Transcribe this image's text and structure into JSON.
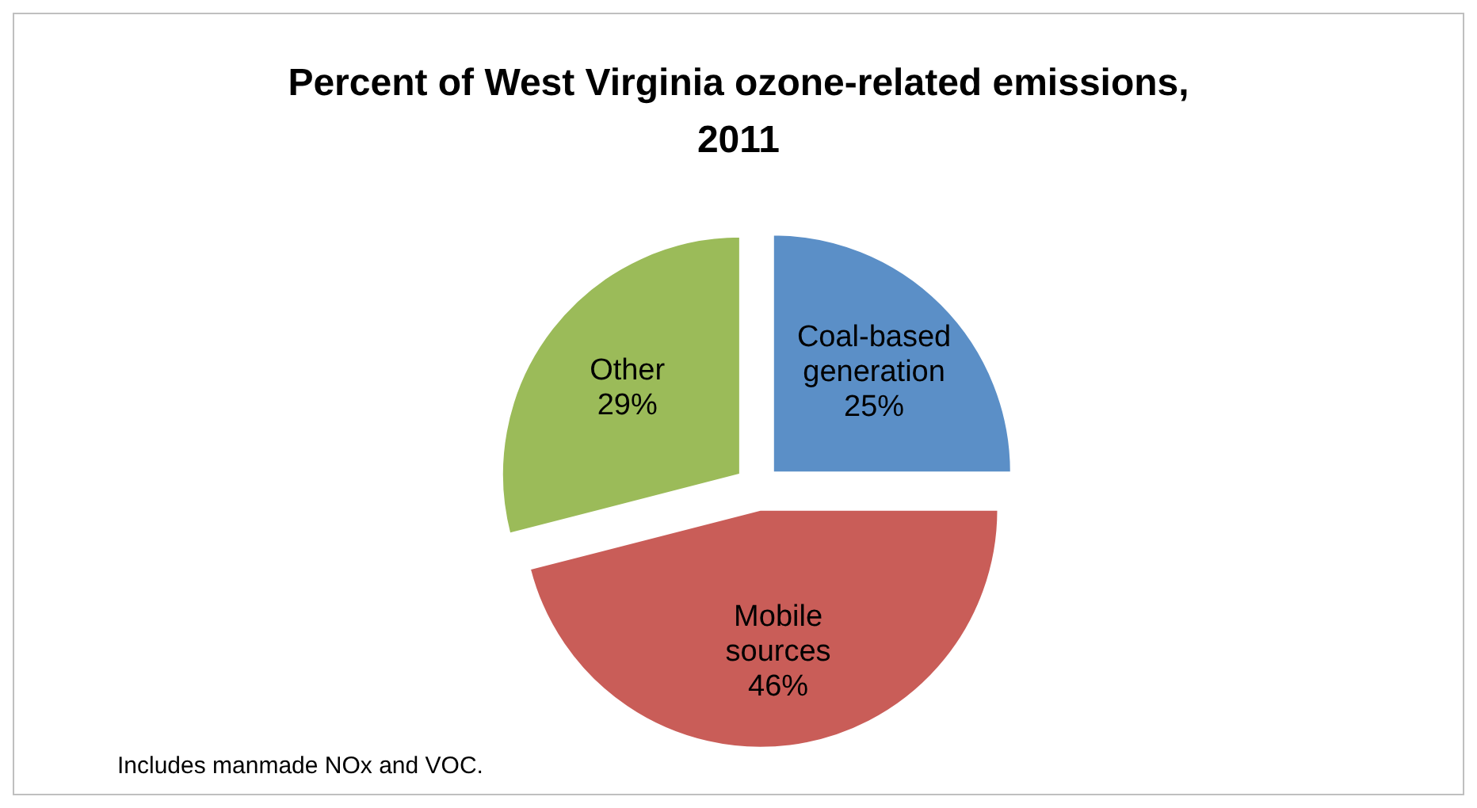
{
  "chart_data": {
    "type": "pie",
    "title": "Percent of West Virginia ozone-related emissions, 2011",
    "categories": [
      "Coal-based generation",
      "Mobile sources",
      "Other"
    ],
    "values": [
      25,
      46,
      29
    ],
    "colors": [
      "#5b8fc7",
      "#c95d58",
      "#9bbb59"
    ],
    "value_labels": [
      "25%",
      "46%",
      "29%"
    ],
    "annotations": [
      "Includes manmade NOx and VOC."
    ]
  }
}
